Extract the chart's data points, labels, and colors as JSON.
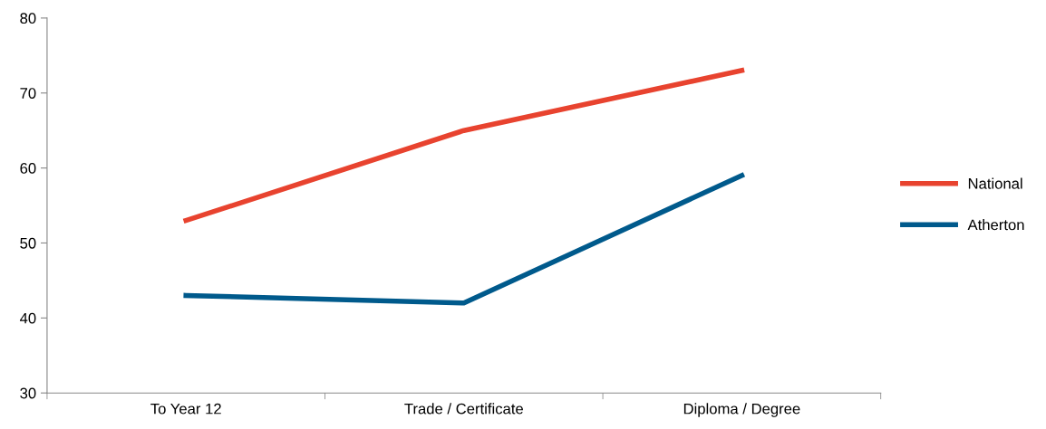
{
  "chart_data": {
    "type": "line",
    "categories": [
      "To Year 12",
      "Trade / Certificate",
      "Diploma / Degree"
    ],
    "series": [
      {
        "name": "National",
        "color": "#e8432f",
        "values": [
          53,
          65,
          73
        ]
      },
      {
        "name": "Atherton",
        "color": "#005a8c",
        "values": [
          43,
          42,
          59
        ]
      }
    ],
    "ylim": [
      30,
      80
    ],
    "yticks": [
      30,
      40,
      50,
      60,
      70,
      80
    ],
    "grid": false,
    "legend": "right",
    "marker": "none",
    "line_style": "solid"
  }
}
